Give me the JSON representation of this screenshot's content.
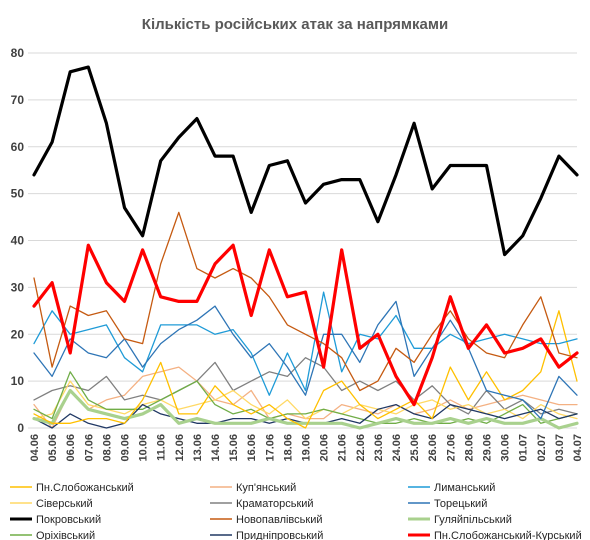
{
  "chart_data": {
    "type": "line",
    "title": "Кількість російських атак за напрямками",
    "xlabel": "",
    "ylabel": "",
    "ylim": [
      0,
      80
    ],
    "yticks": [
      0,
      10,
      20,
      30,
      40,
      50,
      60,
      70,
      80
    ],
    "grid": "horizontal",
    "legend_position": "bottom",
    "categories": [
      "04.06",
      "05.06",
      "06.06",
      "07.06",
      "08.06",
      "09.06",
      "10.06",
      "11.06",
      "12.06",
      "13.06",
      "14.06",
      "15.06",
      "16.06",
      "17.06",
      "18.06",
      "19.06",
      "20.06",
      "21.06",
      "22.06",
      "23.06",
      "24.06",
      "25.06",
      "26.06",
      "27.06",
      "28.06",
      "29.06",
      "30.06",
      "01.07",
      "02.07",
      "03.07",
      "04.07"
    ],
    "series": [
      {
        "name": "Пн.Слобожанський",
        "color": "#ffc000",
        "width": 1.3,
        "values": [
          3,
          1,
          1,
          2,
          2,
          1,
          6,
          14,
          3,
          3,
          9,
          5,
          3,
          5,
          2,
          0,
          8,
          10,
          5,
          2,
          4,
          6,
          2,
          13,
          6,
          12,
          6,
          8,
          12,
          25,
          10
        ]
      },
      {
        "name": "Куп'янський",
        "color": "#f4b183",
        "width": 1.3,
        "values": [
          5,
          0,
          8,
          4,
          6,
          7,
          11,
          12,
          13,
          10,
          6,
          5,
          8,
          2,
          3,
          2,
          2,
          5,
          4,
          3,
          5,
          3,
          4,
          6,
          4,
          5,
          6,
          7,
          6,
          5,
          5
        ]
      },
      {
        "name": "Лиманський",
        "color": "#1f9bd7",
        "width": 1.3,
        "values": [
          18,
          25,
          20,
          21,
          22,
          15,
          12,
          22,
          22,
          22,
          20,
          21,
          16,
          7,
          16,
          8,
          29,
          12,
          20,
          19,
          24,
          17,
          17,
          20,
          18,
          19,
          20,
          19,
          18,
          18,
          19
        ]
      },
      {
        "name": "Сіверський",
        "color": "#ffd966",
        "width": 1.3,
        "values": [
          2,
          3,
          10,
          5,
          4,
          3,
          5,
          6,
          4,
          5,
          6,
          8,
          5,
          3,
          6,
          2,
          4,
          3,
          5,
          4,
          3,
          5,
          6,
          4,
          5,
          3,
          4,
          2,
          5,
          3,
          2
        ]
      },
      {
        "name": "Краматорський",
        "color": "#808080",
        "width": 1.3,
        "values": [
          6,
          8,
          9,
          8,
          11,
          6,
          7,
          6,
          8,
          10,
          14,
          8,
          10,
          12,
          11,
          15,
          13,
          8,
          10,
          8,
          10,
          6,
          9,
          5,
          3,
          8,
          4,
          6,
          3,
          4,
          3
        ]
      },
      {
        "name": "Торецький",
        "color": "#2e75b6",
        "width": 1.3,
        "values": [
          16,
          11,
          19,
          16,
          15,
          19,
          13,
          18,
          21,
          23,
          26,
          20,
          15,
          18,
          13,
          7,
          20,
          20,
          14,
          22,
          27,
          11,
          17,
          23,
          17,
          8,
          7,
          6,
          2,
          11,
          7
        ]
      },
      {
        "name": "Покровський",
        "color": "#000000",
        "width": 3.2,
        "values": [
          54,
          61,
          76,
          77,
          65,
          47,
          41,
          57,
          62,
          66,
          58,
          58,
          46,
          56,
          57,
          48,
          52,
          53,
          53,
          44,
          54,
          65,
          51,
          56,
          56,
          56,
          37,
          41,
          49,
          58,
          54
        ]
      },
      {
        "name": "Новопавлівський",
        "color": "#c55a11",
        "width": 1.3,
        "values": [
          32,
          13,
          26,
          24,
          25,
          19,
          18,
          35,
          46,
          34,
          32,
          34,
          32,
          28,
          22,
          20,
          18,
          15,
          8,
          10,
          17,
          14,
          20,
          25,
          19,
          16,
          15,
          22,
          28,
          16,
          15
        ]
      },
      {
        "name": "Гуляйпільський",
        "color": "#a9d18e",
        "width": 3.2,
        "values": [
          2,
          1,
          8,
          4,
          3,
          2,
          3,
          5,
          1,
          2,
          1,
          1,
          1,
          2,
          1,
          1,
          1,
          1,
          0,
          1,
          2,
          1,
          1,
          2,
          1,
          2,
          1,
          1,
          2,
          0,
          1
        ]
      },
      {
        "name": "Оріхівський",
        "color": "#70ad47",
        "width": 1.3,
        "values": [
          4,
          2,
          12,
          6,
          4,
          4,
          4,
          6,
          8,
          10,
          5,
          3,
          4,
          2,
          3,
          3,
          4,
          3,
          2,
          1,
          1,
          2,
          1,
          1,
          2,
          1,
          3,
          5,
          1,
          2,
          3
        ]
      },
      {
        "name": "Придніпровський",
        "color": "#203864",
        "width": 1.3,
        "values": [
          2,
          0,
          3,
          1,
          0,
          1,
          5,
          3,
          2,
          1,
          1,
          2,
          2,
          1,
          2,
          1,
          1,
          2,
          1,
          4,
          5,
          3,
          2,
          5,
          4,
          3,
          2,
          3,
          4,
          2,
          3
        ]
      },
      {
        "name": "Пн.Слобожанський-Курський",
        "color": "#ff0000",
        "width": 3.2,
        "values": [
          26,
          31,
          16,
          39,
          31,
          27,
          38,
          28,
          27,
          27,
          35,
          39,
          24,
          38,
          28,
          29,
          13,
          38,
          17,
          20,
          11,
          5,
          15,
          28,
          17,
          22,
          16,
          17,
          19,
          13,
          16
        ]
      }
    ]
  }
}
